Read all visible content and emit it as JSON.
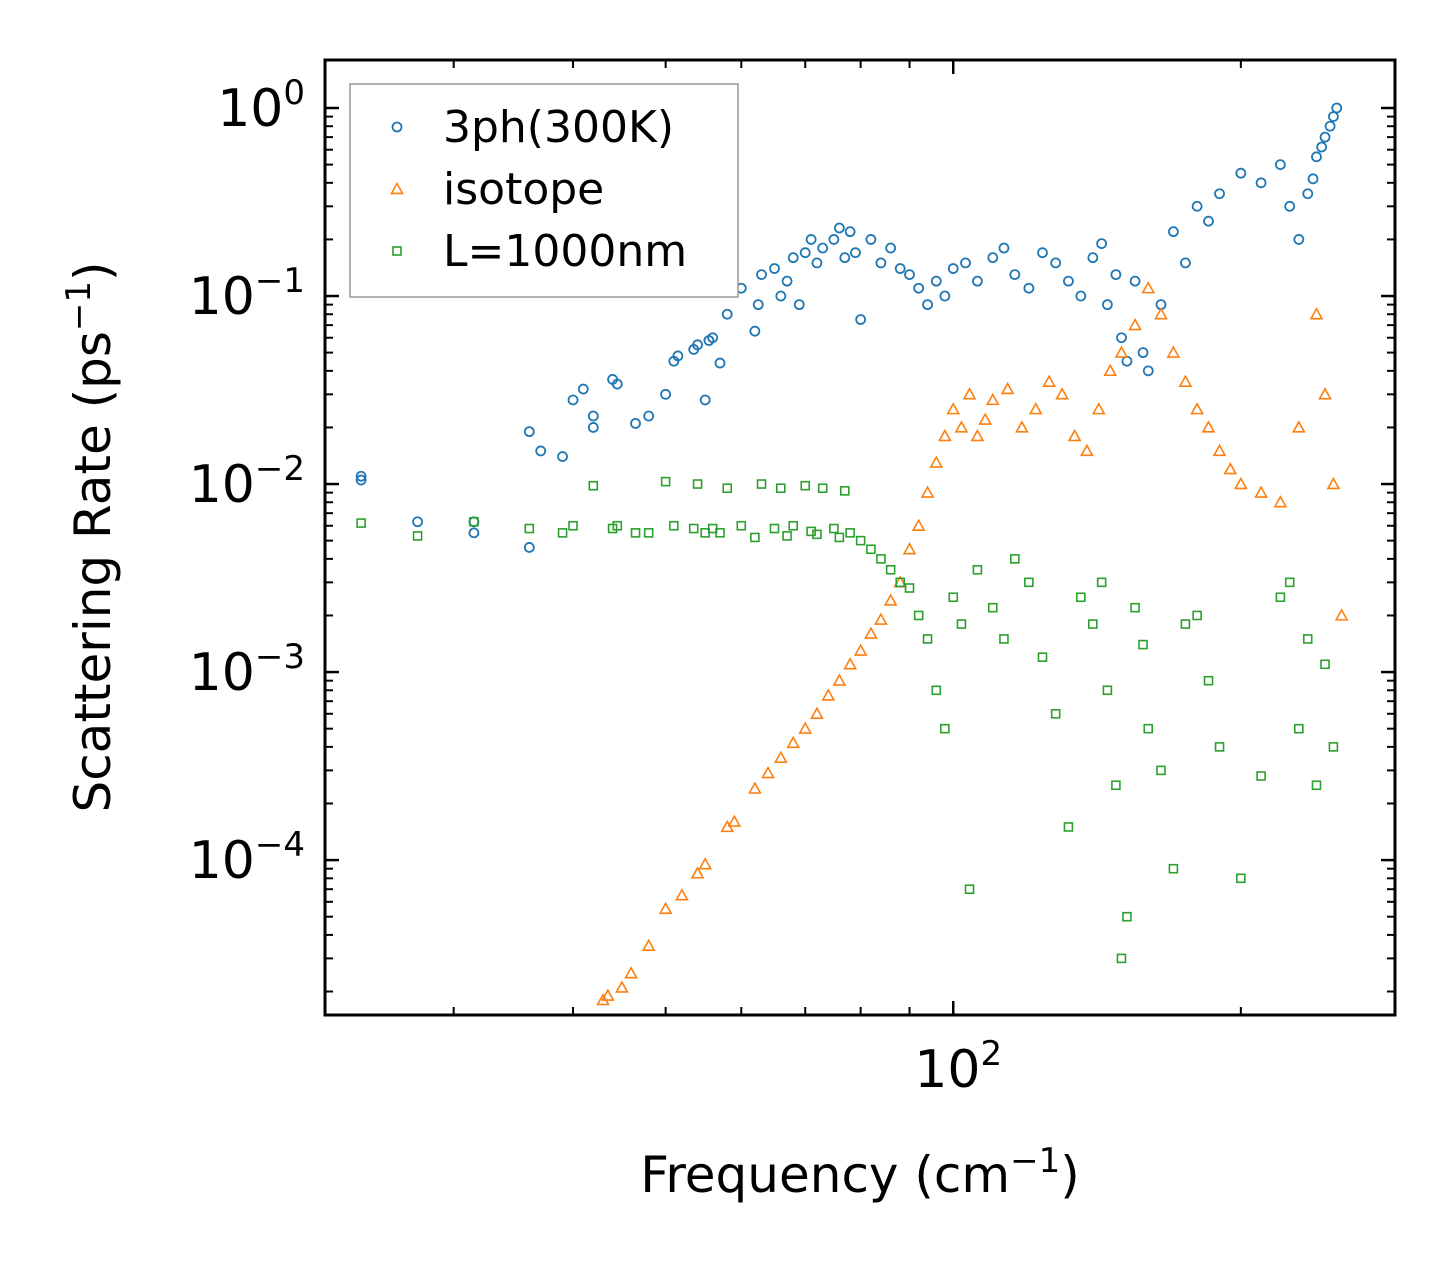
{
  "chart_data": {
    "type": "scatter",
    "xscale": "log",
    "yscale": "log",
    "xlabel": "Frequency (cm",
    "xlabel_sup": "−1",
    "xlabel_end": ")",
    "ylabel": "Scattering Rate (ps",
    "ylabel_sup": "−1",
    "ylabel_end": ")",
    "xlim": [
      22,
      290
    ],
    "ylim": [
      1.5e-05,
      1.8
    ],
    "x_major_ticks": [
      {
        "value": 100,
        "base": "10",
        "exp": "2"
      }
    ],
    "x_minor_ticks": [
      30,
      40,
      50,
      60,
      70,
      80,
      90,
      200
    ],
    "y_major_ticks": [
      {
        "value": 1,
        "base": "10",
        "exp": "0"
      },
      {
        "value": 0.1,
        "base": "10",
        "exp": "−1"
      },
      {
        "value": 0.01,
        "base": "10",
        "exp": "−2"
      },
      {
        "value": 0.001,
        "base": "10",
        "exp": "−3"
      },
      {
        "value": 0.0001,
        "base": "10",
        "exp": "−4"
      }
    ],
    "legend_position": "upper-left",
    "series": [
      {
        "name": "3ph(300K)",
        "color": "#1f77b4",
        "marker": "circle",
        "x": [
          24,
          24,
          27.5,
          31.5,
          31.5,
          36,
          36,
          37,
          39,
          40,
          41,
          42,
          42,
          44,
          44.5,
          46.5,
          48,
          50,
          51,
          51.5,
          53.5,
          54,
          55,
          55.5,
          56,
          57,
          58,
          60,
          62,
          62.5,
          63,
          65,
          66,
          67,
          68,
          69,
          70,
          71,
          72,
          73,
          75,
          76,
          77,
          78,
          79,
          80,
          82,
          84,
          86,
          88,
          90,
          92,
          94,
          96,
          98,
          100,
          103,
          106,
          110,
          113,
          116,
          120,
          124,
          128,
          132,
          136,
          140,
          143,
          145,
          148,
          150,
          152,
          155,
          158,
          160,
          165,
          170,
          175,
          180,
          185,
          190,
          200,
          210,
          220,
          225,
          230,
          235,
          238,
          240,
          243,
          245,
          248,
          250,
          252
        ],
        "y": [
          0.011,
          0.0105,
          0.0063,
          0.0063,
          0.0055,
          0.019,
          0.0046,
          0.015,
          0.014,
          0.028,
          0.032,
          0.02,
          0.023,
          0.036,
          0.034,
          0.021,
          0.023,
          0.03,
          0.045,
          0.048,
          0.052,
          0.055,
          0.028,
          0.058,
          0.06,
          0.044,
          0.08,
          0.11,
          0.065,
          0.09,
          0.13,
          0.14,
          0.1,
          0.12,
          0.16,
          0.09,
          0.17,
          0.2,
          0.15,
          0.18,
          0.2,
          0.23,
          0.16,
          0.22,
          0.17,
          0.075,
          0.2,
          0.15,
          0.18,
          0.14,
          0.13,
          0.11,
          0.09,
          0.12,
          0.1,
          0.14,
          0.15,
          0.12,
          0.16,
          0.18,
          0.13,
          0.11,
          0.17,
          0.15,
          0.12,
          0.1,
          0.16,
          0.19,
          0.09,
          0.13,
          0.06,
          0.045,
          0.12,
          0.05,
          0.04,
          0.09,
          0.22,
          0.15,
          0.3,
          0.25,
          0.35,
          0.45,
          0.4,
          0.5,
          0.3,
          0.2,
          0.35,
          0.42,
          0.55,
          0.62,
          0.7,
          0.8,
          0.9,
          1.0
        ]
      },
      {
        "name": "isotope",
        "color": "#ff7f0e",
        "marker": "triangle",
        "x": [
          43,
          43.5,
          45,
          46,
          48,
          50,
          52,
          54,
          55,
          58,
          59,
          62,
          64,
          66,
          68,
          70,
          72,
          74,
          76,
          78,
          80,
          82,
          84,
          86,
          88,
          90,
          92,
          94,
          96,
          98,
          100,
          102,
          104,
          106,
          108,
          110,
          114,
          118,
          122,
          126,
          130,
          134,
          138,
          142,
          146,
          150,
          155,
          160,
          165,
          170,
          175,
          180,
          185,
          190,
          195,
          200,
          210,
          220,
          230,
          240,
          245,
          250,
          255
        ],
        "y": [
          1.8e-05,
          1.9e-05,
          2.1e-05,
          2.5e-05,
          3.5e-05,
          5.5e-05,
          6.5e-05,
          8.5e-05,
          9.5e-05,
          0.00015,
          0.00016,
          0.00024,
          0.00029,
          0.00035,
          0.00042,
          0.0005,
          0.0006,
          0.00075,
          0.0009,
          0.0011,
          0.0013,
          0.0016,
          0.0019,
          0.0024,
          0.003,
          0.0045,
          0.006,
          0.009,
          0.013,
          0.018,
          0.025,
          0.02,
          0.03,
          0.018,
          0.022,
          0.028,
          0.032,
          0.02,
          0.025,
          0.035,
          0.03,
          0.018,
          0.015,
          0.025,
          0.04,
          0.05,
          0.07,
          0.11,
          0.08,
          0.05,
          0.035,
          0.025,
          0.02,
          0.015,
          0.012,
          0.01,
          0.009,
          0.008,
          0.02,
          0.08,
          0.03,
          0.01,
          0.002
        ]
      },
      {
        "name": "L=1000nm",
        "color": "#2ca02c",
        "marker": "square",
        "x": [
          24,
          27.5,
          31.5,
          36,
          39,
          40,
          42,
          44,
          44.5,
          46.5,
          48,
          50,
          51,
          53.5,
          54,
          55,
          56,
          57,
          58,
          60,
          62,
          63,
          65,
          66,
          67,
          68,
          70,
          71,
          72,
          73,
          75,
          76,
          77,
          78,
          80,
          82,
          84,
          86,
          88,
          90,
          92,
          94,
          96,
          98,
          100,
          102,
          104,
          106,
          110,
          113,
          116,
          120,
          124,
          128,
          132,
          136,
          140,
          143,
          145,
          148,
          150,
          152,
          155,
          158,
          160,
          165,
          170,
          175,
          180,
          185,
          190,
          200,
          210,
          220,
          225,
          230,
          235,
          240,
          245,
          250
        ],
        "y": [
          0.0062,
          0.0053,
          0.0063,
          0.0058,
          0.0055,
          0.006,
          0.0098,
          0.0058,
          0.006,
          0.0055,
          0.0055,
          0.0103,
          0.006,
          0.0058,
          0.01,
          0.0055,
          0.0058,
          0.0055,
          0.0095,
          0.006,
          0.0052,
          0.01,
          0.0058,
          0.0095,
          0.0053,
          0.006,
          0.0098,
          0.0056,
          0.0054,
          0.0095,
          0.0058,
          0.0052,
          0.0092,
          0.0055,
          0.005,
          0.0045,
          0.004,
          0.0035,
          0.003,
          0.0028,
          0.002,
          0.0015,
          0.0008,
          0.0005,
          0.0025,
          0.0018,
          7e-05,
          0.0035,
          0.0022,
          0.0015,
          0.004,
          0.003,
          0.0012,
          0.0006,
          0.00015,
          0.0025,
          0.0018,
          0.003,
          0.0008,
          0.00025,
          3e-05,
          5e-05,
          0.0022,
          0.0014,
          0.0005,
          0.0003,
          9e-05,
          0.0018,
          0.002,
          0.0009,
          0.0004,
          8e-05,
          0.00028,
          0.0025,
          0.003,
          0.0005,
          0.0015,
          0.00025,
          0.0011,
          0.0004
        ]
      }
    ]
  }
}
